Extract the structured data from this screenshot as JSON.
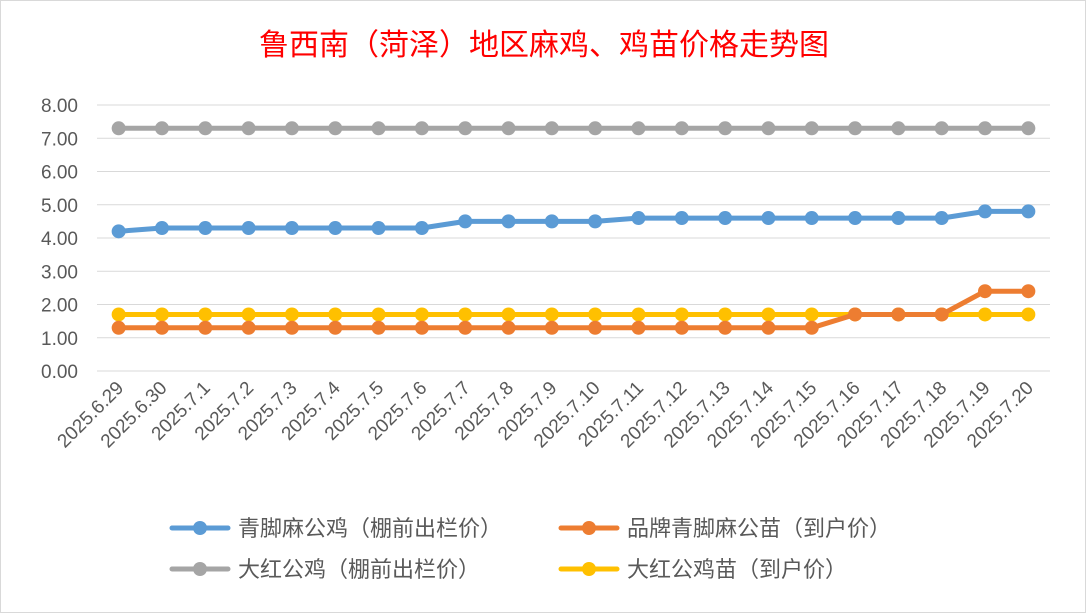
{
  "chart_data": {
    "type": "line",
    "title": "鲁西南（菏泽）地区麻鸡、鸡苗价格走势图",
    "xlabel": "",
    "ylabel": "",
    "ylim": [
      0,
      8
    ],
    "y_ticks": [
      "0.00",
      "1.00",
      "2.00",
      "3.00",
      "4.00",
      "5.00",
      "6.00",
      "7.00",
      "8.00"
    ],
    "grid": "horizontal",
    "legend_position": "bottom",
    "categories": [
      "2025.6.29",
      "2025.6.30",
      "2025.7.1",
      "2025.7.2",
      "2025.7.3",
      "2025.7.4",
      "2025.7.5",
      "2025.7.6",
      "2025.7.7",
      "2025.7.8",
      "2025.7.9",
      "2025.7.10",
      "2025.7.11",
      "2025.7.12",
      "2025.7.13",
      "2025.7.14",
      "2025.7.15",
      "2025.7.16",
      "2025.7.17",
      "2025.7.18",
      "2025.7.19",
      "2025.7.20"
    ],
    "series": [
      {
        "name": "青脚麻公鸡（棚前出栏价）",
        "color": "#5b9bd5",
        "values": [
          4.2,
          4.3,
          4.3,
          4.3,
          4.3,
          4.3,
          4.3,
          4.3,
          4.5,
          4.5,
          4.5,
          4.5,
          4.6,
          4.6,
          4.6,
          4.6,
          4.6,
          4.6,
          4.6,
          4.6,
          4.8,
          4.8
        ]
      },
      {
        "name": "品牌青脚麻公苗（到户价）",
        "color": "#ed7d31",
        "values": [
          1.3,
          1.3,
          1.3,
          1.3,
          1.3,
          1.3,
          1.3,
          1.3,
          1.3,
          1.3,
          1.3,
          1.3,
          1.3,
          1.3,
          1.3,
          1.3,
          1.3,
          1.7,
          1.7,
          1.7,
          2.4,
          2.4
        ]
      },
      {
        "name": "大红公鸡（棚前出栏价）",
        "color": "#a5a5a5",
        "values": [
          7.3,
          7.3,
          7.3,
          7.3,
          7.3,
          7.3,
          7.3,
          7.3,
          7.3,
          7.3,
          7.3,
          7.3,
          7.3,
          7.3,
          7.3,
          7.3,
          7.3,
          7.3,
          7.3,
          7.3,
          7.3,
          7.3
        ]
      },
      {
        "name": "大红公鸡苗（到户价）",
        "color": "#ffc000",
        "values": [
          1.7,
          1.7,
          1.7,
          1.7,
          1.7,
          1.7,
          1.7,
          1.7,
          1.7,
          1.7,
          1.7,
          1.7,
          1.7,
          1.7,
          1.7,
          1.7,
          1.7,
          1.7,
          1.7,
          1.7,
          1.7,
          1.7
        ]
      }
    ],
    "draw_order": [
      2,
      3,
      1,
      0
    ],
    "gridline_color": "#d9d9d9"
  }
}
